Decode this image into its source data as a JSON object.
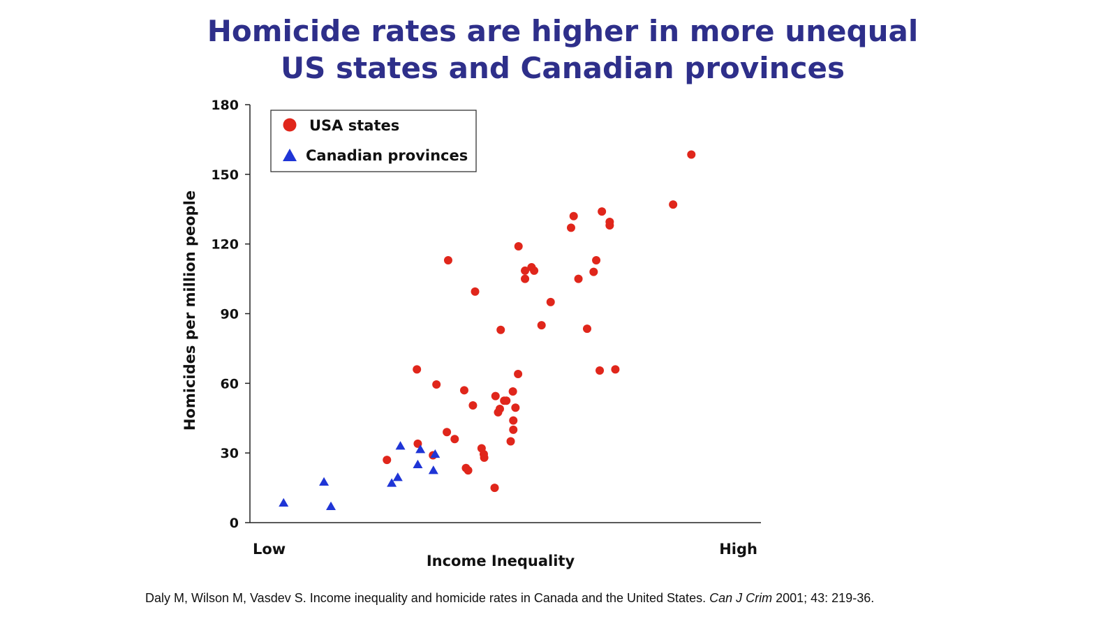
{
  "title": {
    "line1": "Homicide rates are higher in more unequal",
    "line2": "US states and Canadian provinces"
  },
  "citation": {
    "authors": "Daly M, Wilson M, Vasdev S. Income inequality and homicide rates in Canada and the United States. ",
    "journal": "Can J Crim",
    "ref": " 2001; 43: 219-36."
  },
  "colors": {
    "title": "#2e2f8a",
    "usa": "#e0261b",
    "canada": "#1f35d6",
    "axis": "#222222"
  },
  "chart_data": {
    "type": "scatter",
    "title": "Homicide rates are higher in more unequal US states and Canadian provinces",
    "xlabel": "Income Inequality",
    "ylabel": "Homicides per million people",
    "x_tick_labels": [
      "Low",
      "High"
    ],
    "xlim": [
      0,
      100
    ],
    "ylim": [
      0,
      180
    ],
    "yticks": [
      0,
      30,
      60,
      90,
      120,
      150,
      180
    ],
    "grid": false,
    "legend_position": "top-left",
    "series": [
      {
        "name": "USA states",
        "marker": "circle",
        "color": "#e0261b",
        "points": [
          [
            24.8,
            27
          ],
          [
            31.7,
            66
          ],
          [
            31.9,
            34
          ],
          [
            35.4,
            29
          ],
          [
            36.2,
            59.5
          ],
          [
            38.6,
            39
          ],
          [
            38.9,
            113
          ],
          [
            40.4,
            36
          ],
          [
            42.6,
            57
          ],
          [
            43.0,
            23.5
          ],
          [
            43.5,
            22.5
          ],
          [
            44.6,
            50.5
          ],
          [
            45.1,
            99.5
          ],
          [
            46.6,
            32
          ],
          [
            47.1,
            29.5
          ],
          [
            47.2,
            28
          ],
          [
            49.6,
            15
          ],
          [
            49.8,
            54.5
          ],
          [
            50.4,
            47.5
          ],
          [
            50.8,
            49
          ],
          [
            51.0,
            83
          ],
          [
            51.8,
            52.5
          ],
          [
            52.3,
            52.5
          ],
          [
            53.3,
            35
          ],
          [
            53.8,
            56.5
          ],
          [
            53.9,
            44
          ],
          [
            53.9,
            40
          ],
          [
            54.4,
            49.5
          ],
          [
            55.0,
            64
          ],
          [
            55.1,
            119
          ],
          [
            56.6,
            108.5
          ],
          [
            56.6,
            105
          ],
          [
            58.1,
            110
          ],
          [
            58.7,
            108.5
          ],
          [
            60.4,
            85
          ],
          [
            62.5,
            95
          ],
          [
            67.2,
            127
          ],
          [
            67.8,
            132
          ],
          [
            68.9,
            105
          ],
          [
            70.9,
            83.5
          ],
          [
            72.4,
            108
          ],
          [
            73.0,
            113
          ],
          [
            73.8,
            65.5
          ],
          [
            74.3,
            134
          ],
          [
            76.1,
            129.5
          ],
          [
            76.1,
            128
          ],
          [
            77.4,
            66
          ],
          [
            90.7,
            137
          ],
          [
            94.9,
            158.5
          ]
        ]
      },
      {
        "name": "Canadian provinces",
        "marker": "triangle",
        "color": "#1f35d6",
        "points": [
          [
            1.0,
            8.5
          ],
          [
            10.3,
            17.5
          ],
          [
            11.9,
            7
          ],
          [
            25.9,
            17
          ],
          [
            27.3,
            19.5
          ],
          [
            27.9,
            33
          ],
          [
            31.9,
            25
          ],
          [
            32.5,
            31.5
          ],
          [
            35.5,
            22.5
          ],
          [
            35.9,
            29.5
          ]
        ]
      }
    ]
  }
}
